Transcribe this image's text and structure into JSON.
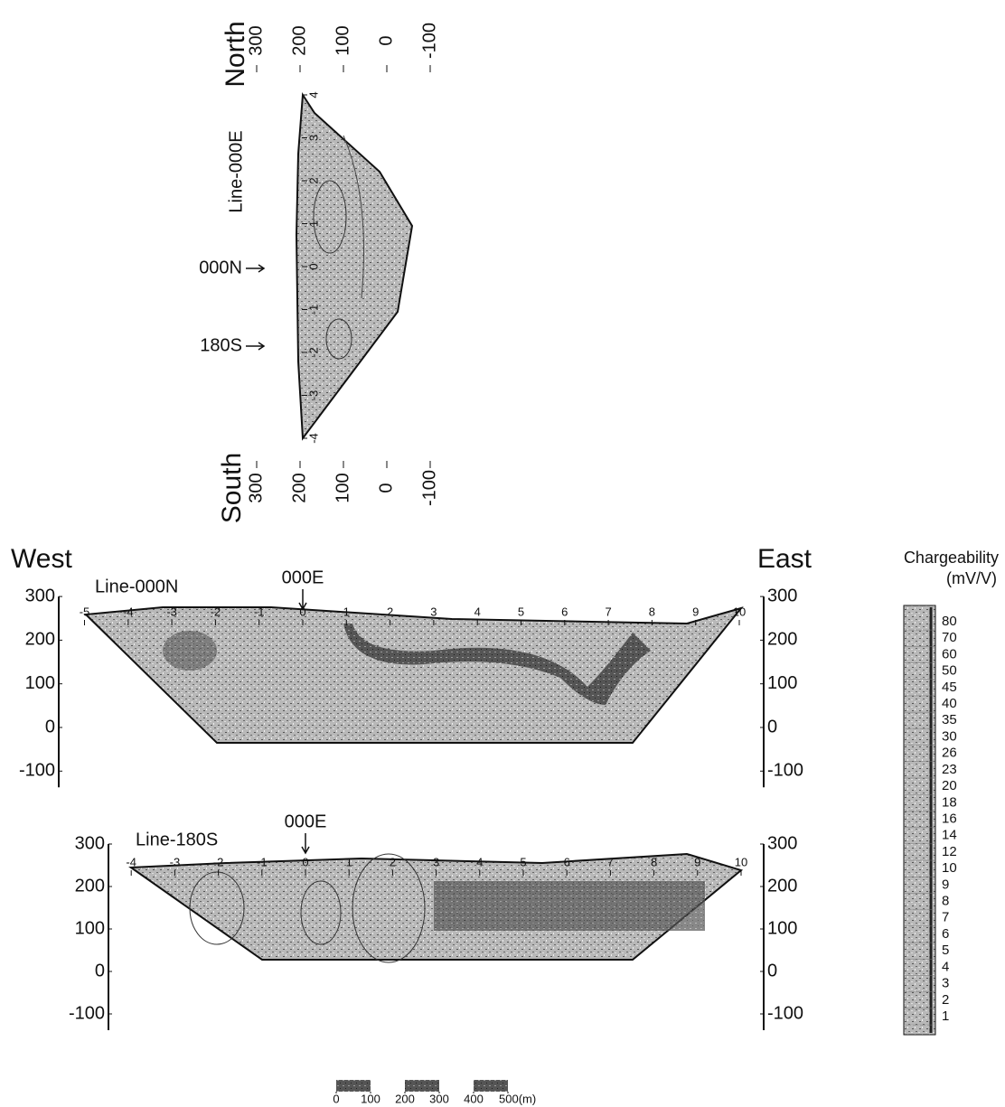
{
  "top_section": {
    "north": "North",
    "south": "South",
    "line": "Line-000E",
    "north_ticks": [
      300,
      200,
      100,
      0,
      -100
    ],
    "south_ticks": [
      300,
      200,
      100,
      0,
      -100
    ],
    "stations": [
      4,
      3,
      2,
      1,
      0,
      -1,
      -2,
      -3,
      -4
    ],
    "markers": [
      "000N",
      "180S"
    ]
  },
  "headings": {
    "west": "West",
    "east": "East"
  },
  "sections": [
    {
      "line": "Line-000N",
      "marker": "000E",
      "yticks": [
        300,
        200,
        100,
        0,
        -100
      ],
      "stations": [
        -5,
        -4,
        -3,
        -2,
        -1,
        0,
        1,
        2,
        3,
        4,
        5,
        6,
        7,
        8,
        9,
        10
      ]
    },
    {
      "line": "Line-180S",
      "marker": "000E",
      "yticks": [
        300,
        200,
        100,
        0,
        -100
      ],
      "stations": [
        -4,
        -3,
        -2,
        -1,
        0,
        1,
        2,
        3,
        4,
        5,
        6,
        7,
        8,
        9,
        10
      ]
    }
  ],
  "legend": {
    "title": "Chargeability",
    "unit": "(mV/V)",
    "levels": [
      80,
      70,
      60,
      50,
      45,
      40,
      35,
      30,
      26,
      23,
      20,
      18,
      16,
      14,
      12,
      10,
      9,
      8,
      7,
      6,
      5,
      4,
      3,
      2,
      1
    ]
  },
  "scale_bar": {
    "ticks": [
      0,
      100,
      200,
      300,
      400,
      {
        "value": 500,
        "label": "500(m)"
      }
    ]
  }
}
